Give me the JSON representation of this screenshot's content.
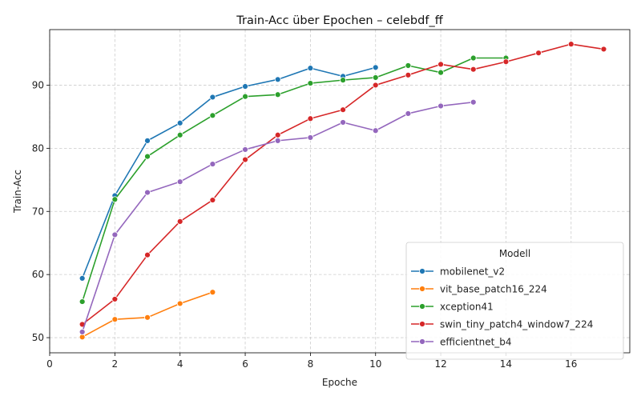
{
  "chart_data": {
    "type": "line",
    "title": "Train-Acc über Epochen – celebdf_ff",
    "xlabel": "Epoche",
    "ylabel": "Train-Acc",
    "xlim": [
      0,
      17.8
    ],
    "ylim": [
      47.6,
      98.8
    ],
    "xticks": [
      0,
      2,
      4,
      6,
      8,
      10,
      12,
      14,
      16
    ],
    "yticks": [
      50,
      60,
      70,
      80,
      90
    ],
    "grid": true,
    "legend": {
      "title": "Modell",
      "placement": "lower-right"
    },
    "series": [
      {
        "name": "mobilenet_v2",
        "color": "#1f77b4",
        "x": [
          1,
          2,
          3,
          4,
          5,
          6,
          7,
          8,
          9,
          10
        ],
        "y": [
          59.4,
          72.5,
          81.2,
          84.0,
          88.1,
          89.8,
          90.9,
          92.7,
          91.4,
          92.8
        ]
      },
      {
        "name": "vit_base_patch16_224",
        "color": "#ff7f0e",
        "x": [
          1,
          2,
          3,
          4,
          5
        ],
        "y": [
          50.1,
          52.9,
          53.2,
          55.4,
          57.2
        ]
      },
      {
        "name": "xception41",
        "color": "#2ca02c",
        "x": [
          1,
          2,
          3,
          4,
          5,
          6,
          7,
          8,
          9,
          10,
          11,
          12,
          13,
          14
        ],
        "y": [
          55.7,
          71.9,
          78.7,
          82.1,
          85.2,
          88.2,
          88.5,
          90.3,
          90.8,
          91.2,
          93.1,
          92.0,
          94.3,
          94.3
        ]
      },
      {
        "name": "swin_tiny_patch4_window7_224",
        "color": "#d62728",
        "x": [
          1,
          2,
          3,
          4,
          5,
          6,
          7,
          8,
          9,
          10,
          11,
          12,
          13,
          14,
          15,
          16,
          17
        ],
        "y": [
          52.1,
          56.1,
          63.1,
          68.4,
          71.8,
          78.2,
          82.1,
          84.7,
          86.1,
          90.0,
          91.6,
          93.3,
          92.5,
          93.7,
          95.1,
          96.5,
          95.7
        ]
      },
      {
        "name": "efficientnet_b4",
        "color": "#9467bd",
        "x": [
          1,
          2,
          3,
          4,
          5,
          6,
          7,
          8,
          9,
          10,
          11,
          12,
          13
        ],
        "y": [
          50.9,
          66.3,
          73.0,
          74.7,
          77.5,
          79.8,
          81.2,
          81.7,
          84.1,
          82.8,
          85.5,
          86.7,
          87.3
        ]
      }
    ]
  }
}
